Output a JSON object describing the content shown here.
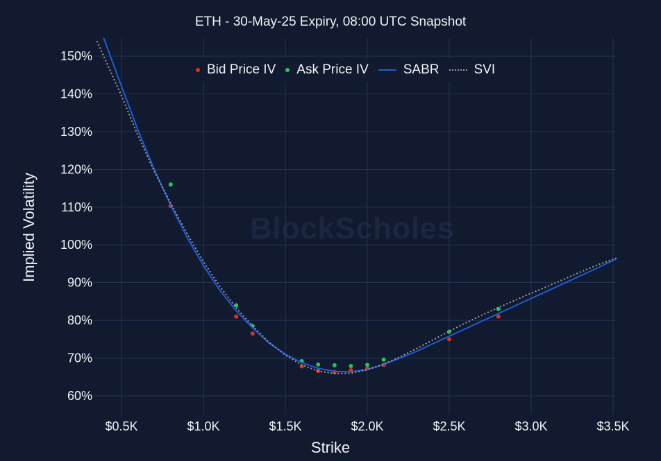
{
  "chart_data": {
    "type": "scatter",
    "title": "ETH - 30-May-25 Expiry, 08:00 UTC Snapshot",
    "xlabel": "Strike",
    "ylabel": "Implied Volatility",
    "xlim": [
      350,
      3520
    ],
    "ylim": [
      56,
      155
    ],
    "x_ticks": [
      500,
      1000,
      1500,
      2000,
      2500,
      3000,
      3500
    ],
    "x_tick_labels": [
      "$0.5K",
      "$1.0K",
      "$1.5K",
      "$2.0K",
      "$2.5K",
      "$3.0K",
      "$3.5K"
    ],
    "y_ticks": [
      60,
      70,
      80,
      90,
      100,
      110,
      120,
      130,
      140,
      150
    ],
    "y_tick_labels": [
      "60%",
      "70%",
      "80%",
      "90%",
      "100%",
      "110%",
      "120%",
      "130%",
      "140%",
      "150%"
    ],
    "grid": true,
    "legend_position": "top-center",
    "watermark": "BlockScholes",
    "series": [
      {
        "name": "Bid Price IV",
        "kind": "scatter",
        "color": "#e0321e",
        "x": [
          800,
          1200,
          1300,
          1600,
          1700,
          1800,
          1900,
          2000,
          2100,
          2500,
          2800
        ],
        "y": [
          110.3,
          81,
          76.5,
          67.8,
          66.6,
          66.3,
          66.8,
          67.3,
          68.2,
          75,
          81
        ]
      },
      {
        "name": "Ask Price IV",
        "kind": "scatter",
        "color": "#22c55e",
        "x": [
          800,
          1200,
          1300,
          1600,
          1700,
          1800,
          1900,
          2000,
          2100,
          2500,
          2800
        ],
        "y": [
          116,
          84,
          78.5,
          69.2,
          68.3,
          68.1,
          67.9,
          68.2,
          69.6,
          77,
          83
        ]
      },
      {
        "name": "SABR",
        "kind": "line",
        "color": "#1f5bd6",
        "x": [
          390,
          500,
          600,
          700,
          800,
          900,
          1000,
          1100,
          1200,
          1300,
          1400,
          1500,
          1600,
          1700,
          1800,
          1900,
          2000,
          2100,
          2200,
          2300,
          2400,
          2500,
          2600,
          2700,
          2800,
          2900,
          3000,
          3100,
          3200,
          3300,
          3400,
          3520
        ],
        "y": [
          155,
          142,
          130.5,
          120,
          110.5,
          102,
          94.5,
          88,
          82.5,
          78,
          74,
          71,
          68.8,
          67.3,
          66.5,
          66.4,
          67,
          68.3,
          70,
          71.8,
          73.8,
          75.8,
          77.8,
          79.8,
          81.8,
          83.8,
          85.8,
          87.8,
          89.8,
          91.8,
          93.8,
          96.3
        ]
      },
      {
        "name": "SVI",
        "kind": "dotted-line",
        "color": "#9aa0aa",
        "x": [
          350,
          500,
          600,
          700,
          800,
          900,
          1000,
          1100,
          1200,
          1300,
          1400,
          1500,
          1600,
          1700,
          1800,
          1900,
          2000,
          2100,
          2200,
          2300,
          2400,
          2500,
          2600,
          2700,
          2800,
          2900,
          3000,
          3100,
          3200,
          3300,
          3400,
          3520
        ],
        "y": [
          154,
          139.5,
          129,
          119.5,
          111,
          103,
          95.5,
          89,
          83.3,
          78.5,
          74.2,
          70.8,
          68.2,
          66.6,
          65.9,
          66,
          66.9,
          68.4,
          70.3,
          72.5,
          74.8,
          77.1,
          79.3,
          81.4,
          83.4,
          85.3,
          87.2,
          89,
          90.9,
          92.8,
          94.6,
          96.5
        ]
      }
    ]
  }
}
